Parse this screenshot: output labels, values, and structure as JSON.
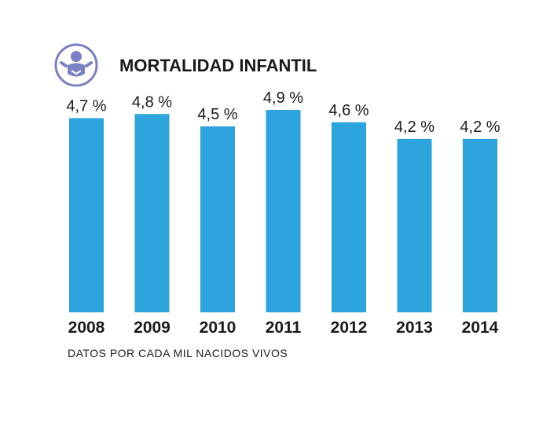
{
  "colors": {
    "bar": "#2ea4de",
    "icon": "#7b7fc4",
    "text": "#1a1a1a"
  },
  "icon": "baby-icon",
  "chart_data": {
    "type": "bar",
    "title": "MORTALIDAD INFANTIL",
    "categories": [
      "2008",
      "2009",
      "2010",
      "2011",
      "2012",
      "2013",
      "2014"
    ],
    "values": [
      4.7,
      4.8,
      4.5,
      4.9,
      4.6,
      4.2,
      4.2
    ],
    "value_labels": [
      "4,7 %",
      "4,8 %",
      "4,5 %",
      "4,9 %",
      "4,6 %",
      "4,2 %",
      "4,2 %"
    ],
    "ylim": [
      0,
      4.9
    ],
    "xlabel": "",
    "ylabel": "",
    "grid": false,
    "footnote": "DATOS POR CADA MIL NACIDOS VIVOS"
  }
}
